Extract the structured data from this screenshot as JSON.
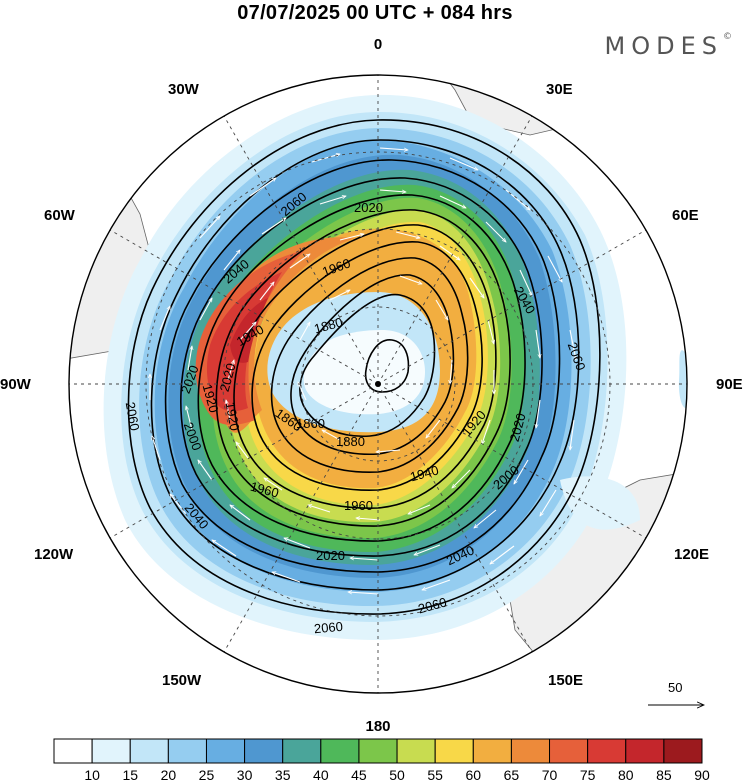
{
  "header": {
    "title": "07/07/2025  00 UTC  + 084 hrs",
    "brand": "MODES",
    "brand_mark": "©"
  },
  "map": {
    "projection": "south polar stereographic",
    "longitude_labels": {
      "top": "0",
      "top_right": "30E",
      "right_upper": "60E",
      "right": "90E",
      "right_lower": "120E",
      "bottom_right": "150E",
      "bottom": "180",
      "bottom_left": "150W",
      "left_lower": "120W",
      "left": "90W",
      "left_upper": "60W",
      "top_left": "30W"
    },
    "contour_labels": [
      "2060",
      "2020",
      "1960",
      "2040",
      "1880",
      "2040",
      "2060",
      "1860",
      "1940",
      "2020",
      "1920",
      "2020",
      "1920",
      "2060",
      "2000",
      "1860",
      "1880",
      "1920",
      "2000",
      "1940",
      "2020",
      "1960",
      "1960",
      "2040",
      "2020",
      "2040",
      "2060",
      "2060"
    ],
    "vector_reference": {
      "value": "50"
    }
  },
  "colorbar": {
    "labels": [
      "10",
      "15",
      "20",
      "25",
      "30",
      "35",
      "40",
      "45",
      "50",
      "55",
      "60",
      "65",
      "70",
      "75",
      "80",
      "85",
      "90"
    ],
    "colors": [
      "#ffffff",
      "#e1f4fc",
      "#c2e6f8",
      "#95cdf0",
      "#67aee2",
      "#4f97d0",
      "#4aa59a",
      "#4fb85a",
      "#7cc64a",
      "#c8dc50",
      "#f8d848",
      "#f2ae40",
      "#ed8a3a",
      "#e6603a",
      "#d83a34",
      "#c4262c",
      "#9c1a1e"
    ]
  }
}
